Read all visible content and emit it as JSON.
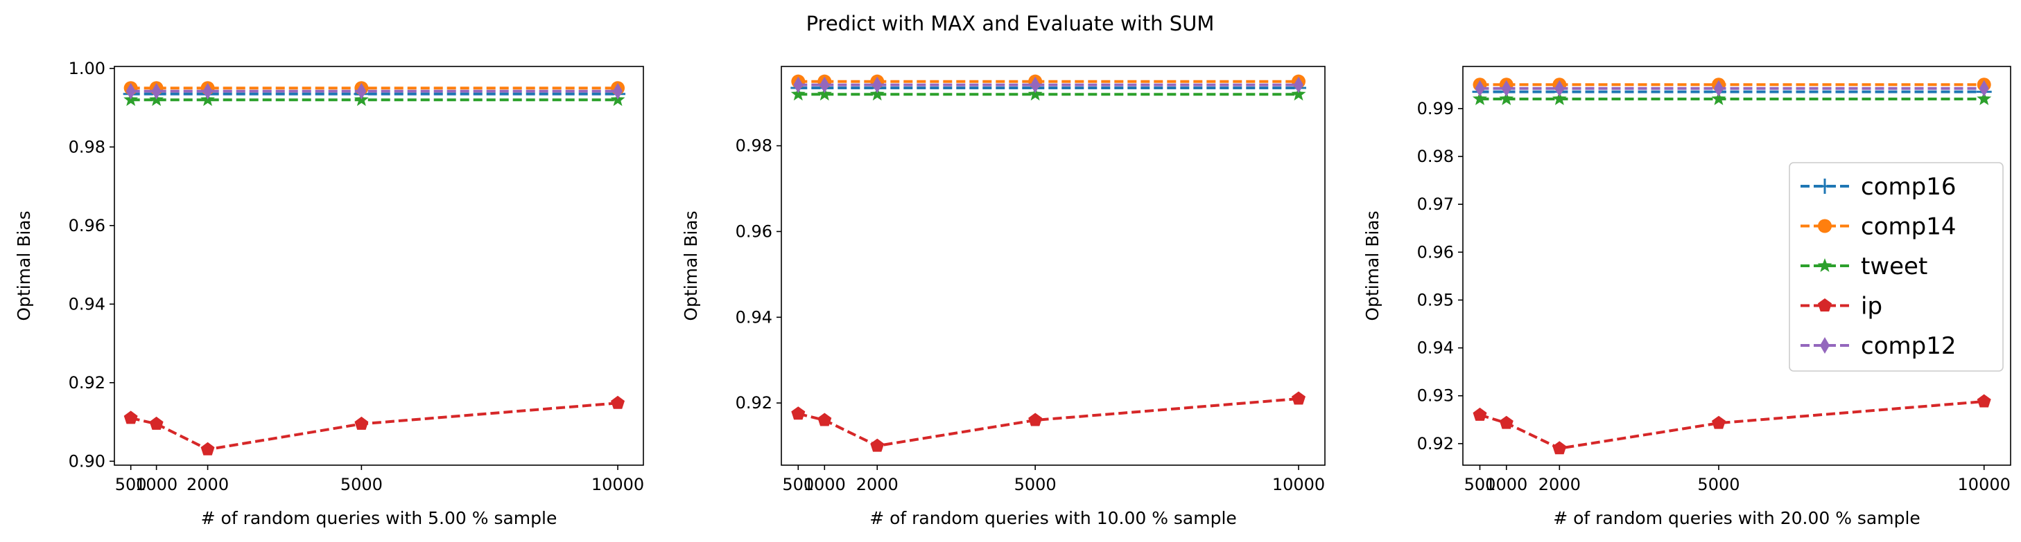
{
  "figure": {
    "title": "Predict with MAX and Evaluate with SUM"
  },
  "colors": {
    "comp16": "#1f77b4",
    "comp14": "#ff7f0e",
    "tweet": "#2ca02c",
    "ip": "#d62728",
    "comp12": "#9467bd"
  },
  "chart_data": [
    {
      "type": "line",
      "xlabel": "# of random queries with 5.00 % sample",
      "ylabel": "Optimal Bias",
      "x": [
        500,
        1000,
        2000,
        5000,
        10000
      ],
      "xticks": [
        "500",
        "1000",
        "2000",
        "5000",
        "10000"
      ],
      "xlim": [
        180,
        10500
      ],
      "ylim": [
        0.899,
        1.0005
      ],
      "yticks": [
        "0.90",
        "0.92",
        "0.94",
        "0.96",
        "0.98",
        "1.00"
      ],
      "ytick_values": [
        0.9,
        0.92,
        0.94,
        0.96,
        0.98,
        1.0
      ],
      "legend": "none",
      "series": [
        {
          "name": "comp16",
          "marker": "plus",
          "values": [
            0.9935,
            0.9935,
            0.9935,
            0.9935,
            0.9935
          ]
        },
        {
          "name": "comp14",
          "marker": "circle",
          "values": [
            0.995,
            0.995,
            0.995,
            0.995,
            0.995
          ]
        },
        {
          "name": "tweet",
          "marker": "star",
          "values": [
            0.992,
            0.992,
            0.992,
            0.992,
            0.992
          ]
        },
        {
          "name": "ip",
          "marker": "pentagon",
          "values": [
            0.911,
            0.9095,
            0.903,
            0.9095,
            0.9148
          ]
        },
        {
          "name": "comp12",
          "marker": "diamond",
          "values": [
            0.9942,
            0.9942,
            0.9942,
            0.9942,
            0.9942
          ]
        }
      ]
    },
    {
      "type": "line",
      "xlabel": "# of random queries with 10.00 % sample",
      "ylabel": "Optimal Bias",
      "x": [
        500,
        1000,
        2000,
        5000,
        10000
      ],
      "xticks": [
        "500",
        "1000",
        "2000",
        "5000",
        "10000"
      ],
      "xlim": [
        180,
        10500
      ],
      "ylim": [
        0.9055,
        0.9985
      ],
      "yticks": [
        "0.92",
        "0.94",
        "0.96",
        "0.98"
      ],
      "ytick_values": [
        0.92,
        0.94,
        0.96,
        0.98
      ],
      "legend": "none",
      "series": [
        {
          "name": "comp16",
          "marker": "plus",
          "values": [
            0.9935,
            0.9935,
            0.9935,
            0.9935,
            0.9935
          ]
        },
        {
          "name": "comp14",
          "marker": "circle",
          "values": [
            0.995,
            0.995,
            0.995,
            0.995,
            0.995
          ]
        },
        {
          "name": "tweet",
          "marker": "star",
          "values": [
            0.992,
            0.992,
            0.992,
            0.992,
            0.992
          ]
        },
        {
          "name": "ip",
          "marker": "pentagon",
          "values": [
            0.9175,
            0.916,
            0.91,
            0.916,
            0.921
          ]
        },
        {
          "name": "comp12",
          "marker": "diamond",
          "values": [
            0.9942,
            0.9942,
            0.9942,
            0.9942,
            0.9942
          ]
        }
      ]
    },
    {
      "type": "line",
      "xlabel": "# of random queries with 20.00 % sample",
      "ylabel": "Optimal Bias",
      "x": [
        500,
        1000,
        2000,
        5000,
        10000
      ],
      "xticks": [
        "500",
        "1000",
        "2000",
        "5000",
        "10000"
      ],
      "xlim": [
        180,
        10500
      ],
      "ylim": [
        0.9155,
        0.9988
      ],
      "yticks": [
        "0.92",
        "0.93",
        "0.94",
        "0.95",
        "0.96",
        "0.97",
        "0.98",
        "0.99"
      ],
      "ytick_values": [
        0.92,
        0.93,
        0.94,
        0.95,
        0.96,
        0.97,
        0.98,
        0.99
      ],
      "legend": "right",
      "series": [
        {
          "name": "comp16",
          "marker": "plus",
          "values": [
            0.9935,
            0.9935,
            0.9935,
            0.9935,
            0.9935
          ]
        },
        {
          "name": "comp14",
          "marker": "circle",
          "values": [
            0.995,
            0.995,
            0.995,
            0.995,
            0.995
          ]
        },
        {
          "name": "tweet",
          "marker": "star",
          "values": [
            0.992,
            0.992,
            0.992,
            0.992,
            0.992
          ]
        },
        {
          "name": "ip",
          "marker": "pentagon",
          "values": [
            0.926,
            0.9243,
            0.919,
            0.9243,
            0.9288
          ]
        },
        {
          "name": "comp12",
          "marker": "diamond",
          "values": [
            0.9942,
            0.9942,
            0.9942,
            0.9942,
            0.9942
          ]
        }
      ]
    }
  ]
}
